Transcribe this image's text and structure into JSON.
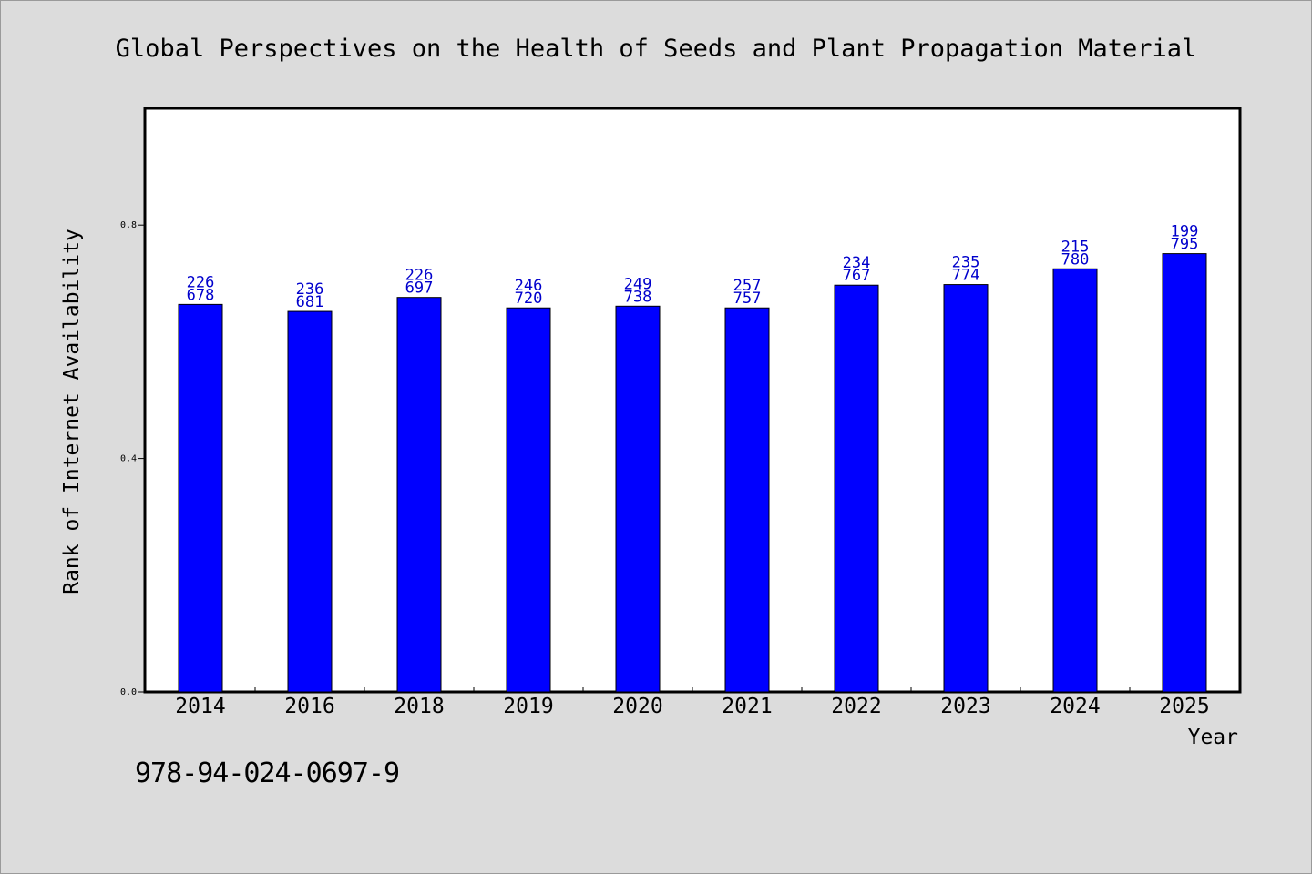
{
  "chart_data": {
    "type": "bar",
    "title": "Global Perspectives on the Health of Seeds and Plant Propagation Material",
    "xlabel": "Year",
    "ylabel": "Rank of Internet Availability",
    "categories": [
      "2014",
      "2016",
      "2018",
      "2019",
      "2020",
      "2021",
      "2022",
      "2023",
      "2024",
      "2025"
    ],
    "values": [
      0.664,
      0.652,
      0.676,
      0.658,
      0.661,
      0.658,
      0.697,
      0.698,
      0.725,
      0.751
    ],
    "bar_labels_top": [
      "226",
      "236",
      "226",
      "246",
      "249",
      "257",
      "234",
      "235",
      "215",
      "199"
    ],
    "bar_labels_bottom": [
      "678",
      "681",
      "697",
      "720",
      "738",
      "757",
      "767",
      "774",
      "780",
      "795"
    ],
    "yticks": [
      0.0,
      0.4,
      0.8
    ],
    "ytick_labels": [
      "0.0",
      "0.4",
      "0.8"
    ],
    "ylim": [
      0,
      1.0
    ],
    "grid": false,
    "legend": "none",
    "bar_color": "#0000ff",
    "label_color": "#0000cc"
  },
  "footer": {
    "isbn": "978-94-024-0697-9"
  }
}
